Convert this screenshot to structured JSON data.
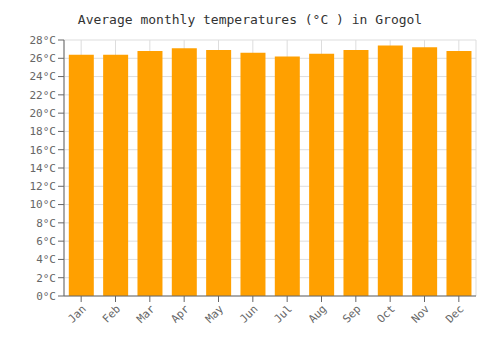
{
  "chart_data": {
    "type": "bar",
    "title": "Average monthly temperatures (°C ) in Grogol",
    "categories": [
      "Jan",
      "Feb",
      "Mar",
      "Apr",
      "May",
      "Jun",
      "Jul",
      "Aug",
      "Sep",
      "Oct",
      "Nov",
      "Dec"
    ],
    "values": [
      26.4,
      26.4,
      26.8,
      27.1,
      26.9,
      26.6,
      26.2,
      26.5,
      26.9,
      27.4,
      27.2,
      26.8
    ],
    "color": "#FFA000",
    "ylim": [
      0,
      28
    ],
    "yticks": [
      {
        "value": 0,
        "label": "0°C"
      },
      {
        "value": 2,
        "label": "2°C"
      },
      {
        "value": 4,
        "label": "4°C"
      },
      {
        "value": 6,
        "label": "6°C"
      },
      {
        "value": 8,
        "label": "8°C"
      },
      {
        "value": 10,
        "label": "10°C"
      },
      {
        "value": 12,
        "label": "12°C"
      },
      {
        "value": 14,
        "label": "14°C"
      },
      {
        "value": 16,
        "label": "16°C"
      },
      {
        "value": 18,
        "label": "18°C"
      },
      {
        "value": 20,
        "label": "20°C"
      },
      {
        "value": 22,
        "label": "22°C"
      },
      {
        "value": 24,
        "label": "24°C"
      },
      {
        "value": 26,
        "label": "26°C"
      },
      {
        "value": 28,
        "label": "28°C"
      }
    ],
    "grid": true
  }
}
